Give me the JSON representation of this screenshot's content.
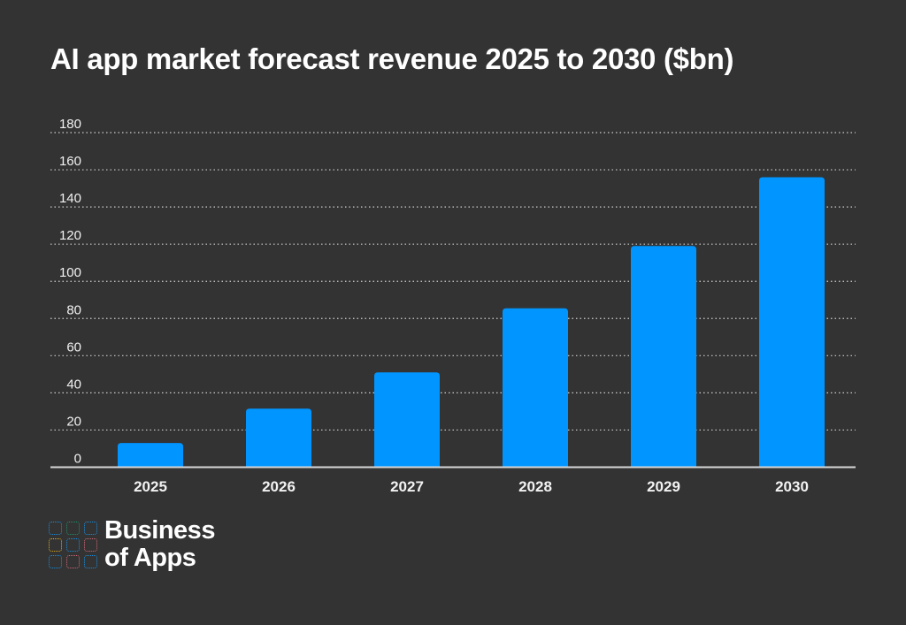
{
  "chart_data": {
    "type": "bar",
    "title": "AI app market forecast revenue 2025 to 2030 ($bn)",
    "categories": [
      "2025",
      "2026",
      "2027",
      "2028",
      "2029",
      "2030"
    ],
    "values": [
      13,
      31.5,
      51,
      85.5,
      119,
      156
    ],
    "ylim": [
      0,
      180
    ],
    "yticks": [
      "0",
      "20",
      "40",
      "60",
      "80",
      "100",
      "120",
      "140",
      "160",
      "180"
    ],
    "grid": true,
    "bar_color": "#0095FF",
    "background": "#333333"
  },
  "logo": {
    "line1": "Business",
    "line2": "of Apps",
    "square_colors": [
      "#1a8fe0",
      "#1f8f6a",
      "#1a8fe0",
      "#e0b020",
      "#1a8fe0",
      "#d06a7a",
      "#1a8fe0",
      "#d06a7a",
      "#1a8fe0"
    ]
  }
}
